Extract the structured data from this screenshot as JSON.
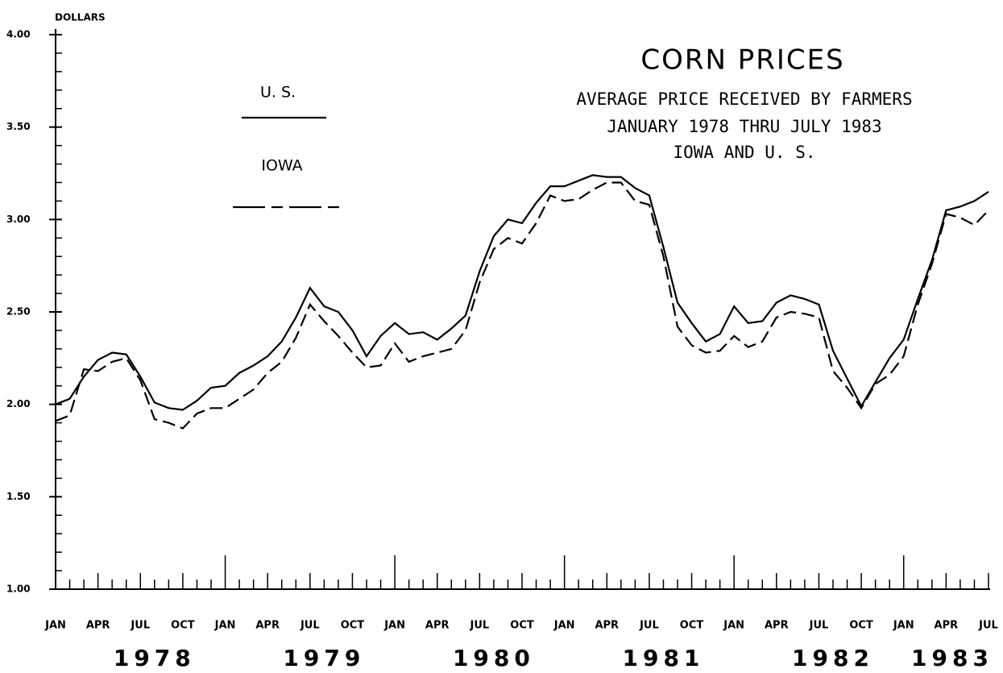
{
  "chart_data": {
    "type": "line",
    "title": "CORN PRICES",
    "subtitle": [
      "AVERAGE PRICE RECEIVED BY FARMERS",
      "JANUARY 1978 THRU JULY 1983",
      "IOWA AND U. S."
    ],
    "y_label": "DOLLARS",
    "categories": [
      "JAN",
      null,
      null,
      "APR",
      null,
      null,
      "JUL",
      null,
      null,
      "OCT",
      null,
      null,
      "JAN",
      null,
      null,
      "APR",
      null,
      null,
      "JUL",
      null,
      null,
      "OCT",
      null,
      null,
      "JAN",
      null,
      null,
      "APR",
      null,
      null,
      "JUL",
      null,
      null,
      "OCT",
      null,
      null,
      "JAN",
      null,
      null,
      "APR",
      null,
      null,
      "JUL",
      null,
      null,
      "OCT",
      null,
      null,
      "JAN",
      null,
      null,
      "APR",
      null,
      null,
      "JUL",
      null,
      null,
      "OCT",
      null,
      null,
      "JAN",
      null,
      null,
      "APR",
      null,
      null,
      "JUL"
    ],
    "years": [
      "1978",
      "1979",
      "1980",
      "1981",
      "1982",
      "1983"
    ],
    "series": [
      {
        "name": "U. S.",
        "color": "#000000",
        "dash": false,
        "values": [
          2.0,
          2.03,
          2.15,
          2.24,
          2.28,
          2.27,
          2.15,
          2.01,
          1.98,
          1.97,
          2.02,
          2.09,
          2.1,
          2.17,
          2.21,
          2.26,
          2.34,
          2.47,
          2.63,
          2.53,
          2.5,
          2.4,
          2.26,
          2.37,
          2.44,
          2.38,
          2.39,
          2.35,
          2.41,
          2.48,
          2.72,
          2.91,
          3.0,
          2.98,
          3.09,
          3.18,
          3.18,
          3.21,
          3.24,
          3.23,
          3.23,
          3.17,
          3.13,
          2.85,
          2.55,
          2.44,
          2.34,
          2.38,
          2.53,
          2.44,
          2.45,
          2.55,
          2.59,
          2.57,
          2.54,
          2.29,
          2.14,
          1.99,
          2.12,
          2.25,
          2.35,
          2.57,
          2.78,
          3.05,
          3.07,
          3.1,
          3.15
        ]
      },
      {
        "name": "IOWA",
        "color": "#000000",
        "dash": true,
        "values": [
          1.91,
          1.94,
          2.19,
          2.18,
          2.23,
          2.25,
          2.13,
          1.92,
          1.9,
          1.87,
          1.95,
          1.98,
          1.98,
          2.03,
          2.08,
          2.17,
          2.23,
          2.36,
          2.54,
          2.45,
          2.37,
          2.28,
          2.2,
          2.21,
          2.33,
          2.23,
          2.26,
          2.28,
          2.3,
          2.4,
          2.66,
          2.84,
          2.9,
          2.87,
          2.98,
          3.13,
          3.1,
          3.11,
          3.16,
          3.2,
          3.2,
          3.1,
          3.08,
          2.8,
          2.42,
          2.32,
          2.28,
          2.29,
          2.37,
          2.31,
          2.34,
          2.47,
          2.5,
          2.49,
          2.47,
          2.18,
          2.09,
          1.98,
          2.11,
          2.16,
          2.26,
          2.54,
          2.76,
          3.03,
          3.01,
          2.97,
          3.05
        ]
      }
    ],
    "ylim": [
      1,
      4
    ],
    "yticks": [
      {
        "value": 1,
        "label": "1.00"
      },
      {
        "value": 1.5,
        "label": "1.50"
      },
      {
        "value": 2,
        "label": "2.00"
      },
      {
        "value": 2.5,
        "label": "2.50"
      },
      {
        "value": 3,
        "label": "3.00"
      },
      {
        "value": 3.5,
        "label": "3.50"
      },
      {
        "value": 4,
        "label": "4.00"
      }
    ],
    "yminorticks": [
      1.1,
      1.2,
      1.3,
      1.4,
      1.6,
      1.7,
      1.8,
      1.9,
      2.1,
      2.2,
      2.3,
      2.4,
      2.6,
      2.7,
      2.8,
      2.9,
      3.1,
      3.2,
      3.3,
      3.4,
      3.6,
      3.7,
      3.8,
      3.9
    ],
    "grid": false
  }
}
